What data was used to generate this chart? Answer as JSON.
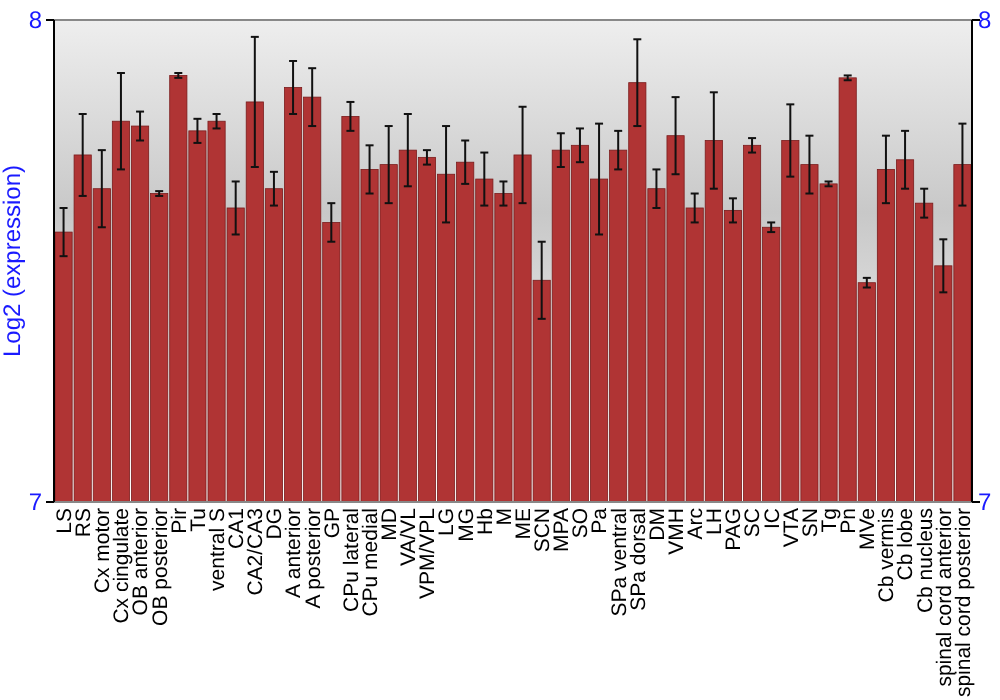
{
  "chart_data": {
    "type": "bar",
    "ylabel": "Log2 (expression)",
    "categories": [
      "LS",
      "RS",
      "Cx motor",
      "Cx cingulate",
      "OB anterior",
      "OB posterior",
      "Pir",
      "Tu",
      "ventral S",
      "CA1",
      "CA2/CA3",
      "DG",
      "A anterior",
      "A posterior",
      "GP",
      "CPu lateral",
      "CPu medial",
      "MD",
      "VA/VL",
      "VPM/VPL",
      "LG",
      "MG",
      "Hb",
      "M",
      "ME",
      "SCN",
      "MPA",
      "SO",
      "Pa",
      "SPa ventral",
      "SPa dorsal",
      "DM",
      "VMH",
      "Arc",
      "LH",
      "PAG",
      "SC",
      "IC",
      "VTA",
      "SN",
      "Tg",
      "Pn",
      "MVe",
      "Cb vermis",
      "Cb lobe",
      "Cb nucleus",
      "spinal cord anterior",
      "spinal cord posterior"
    ],
    "values": [
      7.56,
      7.72,
      7.65,
      7.79,
      7.78,
      7.64,
      7.885,
      7.77,
      7.79,
      7.61,
      7.83,
      7.65,
      7.86,
      7.84,
      7.58,
      7.8,
      7.69,
      7.7,
      7.73,
      7.715,
      7.68,
      7.705,
      7.67,
      7.64,
      7.72,
      7.46,
      7.73,
      7.74,
      7.67,
      7.73,
      7.87,
      7.65,
      7.76,
      7.61,
      7.75,
      7.605,
      7.74,
      7.57,
      7.75,
      7.7,
      7.66,
      7.88,
      7.455,
      7.69,
      7.71,
      7.62,
      7.49,
      7.7
    ],
    "errors": [
      0.05,
      0.085,
      0.08,
      0.1,
      0.03,
      0.005,
      0.005,
      0.025,
      0.015,
      0.055,
      0.135,
      0.035,
      0.055,
      0.06,
      0.04,
      0.03,
      0.05,
      0.08,
      0.075,
      0.015,
      0.1,
      0.045,
      0.055,
      0.025,
      0.1,
      0.08,
      0.035,
      0.035,
      0.115,
      0.04,
      0.09,
      0.04,
      0.08,
      0.03,
      0.1,
      0.025,
      0.015,
      0.01,
      0.075,
      0.06,
      0.005,
      0.005,
      0.01,
      0.07,
      0.06,
      0.03,
      0.055,
      0.085
    ],
    "color": "#b03434",
    "ylim": [
      7,
      8
    ],
    "yticks": [
      7,
      8
    ],
    "y2lim": [
      7,
      8
    ],
    "y2ticks": [
      7,
      8
    ]
  }
}
